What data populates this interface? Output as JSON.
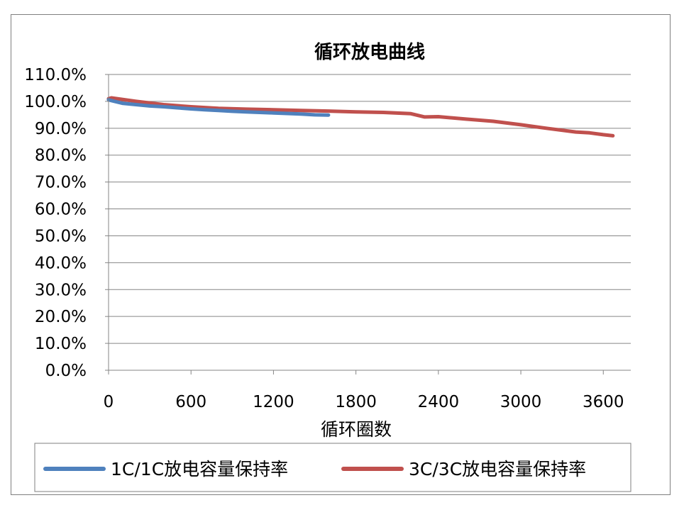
{
  "chart_data": {
    "type": "line",
    "title": "循环放电曲线",
    "xlabel": "循环圈数",
    "ylabel": "",
    "xlim": [
      0,
      3800
    ],
    "ylim": [
      0,
      110
    ],
    "x_ticks": [
      0,
      600,
      1200,
      1800,
      2400,
      3000,
      3600
    ],
    "y_ticks": [
      0,
      10,
      20,
      30,
      40,
      50,
      60,
      70,
      80,
      90,
      100,
      110
    ],
    "y_tick_labels": [
      "0.0%",
      "10.0%",
      "20.0%",
      "30.0%",
      "40.0%",
      "50.0%",
      "60.0%",
      "70.0%",
      "80.0%",
      "90.0%",
      "100.0%",
      "110.0%"
    ],
    "grid": "horizontal",
    "legend": "bottom",
    "series": [
      {
        "name": "1C/1C放电容量保持率",
        "color": "#4f81bd",
        "x": [
          0,
          20,
          100,
          200,
          300,
          400,
          500,
          600,
          700,
          800,
          900,
          1000,
          1100,
          1200,
          1300,
          1400,
          1500,
          1600
        ],
        "y": [
          100.6,
          100.3,
          99.3,
          98.8,
          98.3,
          98.0,
          97.6,
          97.2,
          96.9,
          96.6,
          96.3,
          96.1,
          95.9,
          95.7,
          95.5,
          95.3,
          95.0,
          94.9
        ]
      },
      {
        "name": "3C/3C放电容量保持率",
        "color": "#c0504d",
        "x": [
          0,
          20,
          200,
          400,
          600,
          800,
          1000,
          1200,
          1400,
          1600,
          1800,
          2000,
          2200,
          2300,
          2400,
          2600,
          2800,
          3000,
          3200,
          3400,
          3500,
          3600,
          3670
        ],
        "y": [
          101.0,
          101.3,
          100.0,
          98.8,
          98.0,
          97.4,
          97.1,
          96.9,
          96.6,
          96.4,
          96.1,
          95.9,
          95.4,
          94.2,
          94.3,
          93.4,
          92.6,
          91.3,
          89.9,
          88.6,
          88.3,
          87.6,
          87.2
        ]
      }
    ]
  }
}
